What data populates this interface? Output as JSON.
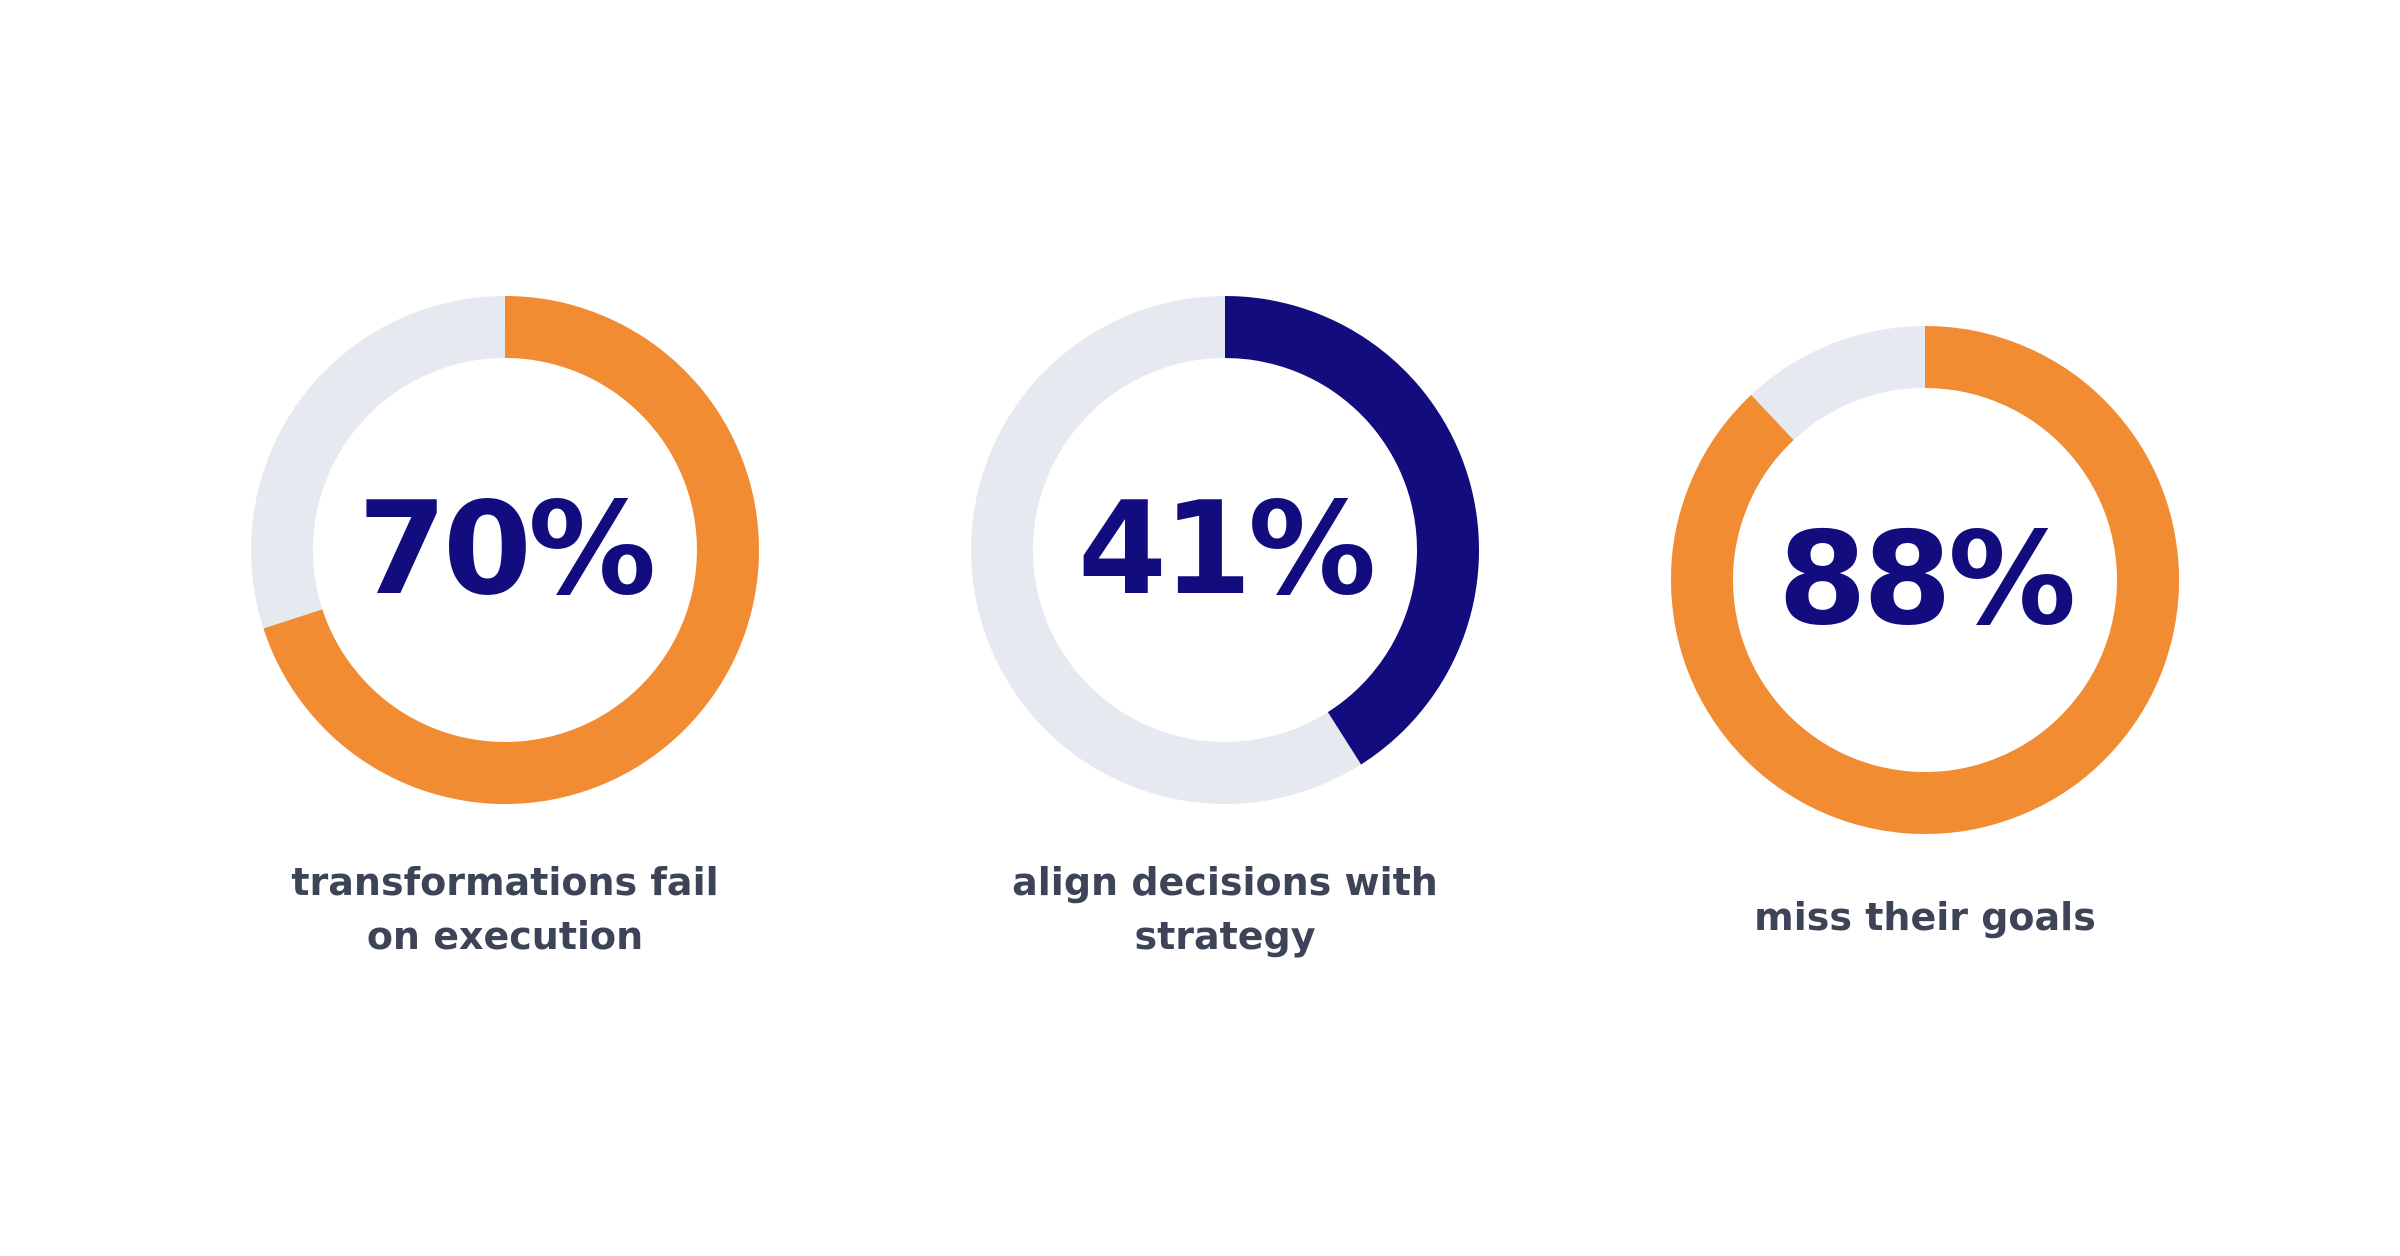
{
  "colors": {
    "track": "#e6e9f0",
    "orange": "#f28c33",
    "navy": "#130c7f",
    "label": "#3d4458"
  },
  "chart_data": [
    {
      "type": "pie",
      "value": 70,
      "max": 100,
      "display": "70%",
      "label": "transformations fail on execution",
      "color": "#f28c33"
    },
    {
      "type": "pie",
      "value": 41,
      "max": 100,
      "display": "41%",
      "label": "align decisions with strategy",
      "color": "#130c7f"
    },
    {
      "type": "pie",
      "value": 88,
      "max": 100,
      "display": "88%",
      "label": "miss their goals",
      "color": "#f28c33"
    }
  ]
}
